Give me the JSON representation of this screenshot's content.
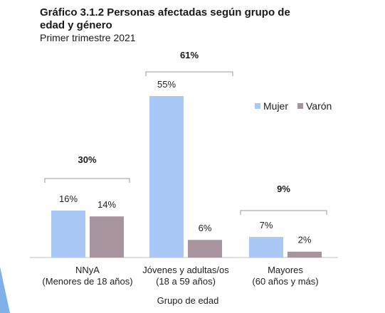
{
  "title_line1": "Gráfico 3.1.2  Personas afectadas según grupo de",
  "title_line2": "edad y género",
  "subtitle": "Primer trimestre 2021",
  "colors": {
    "mujer": "#a9c8f6",
    "varon": "#a7949f",
    "bracket": "#999999",
    "accent_shape": "#7fb0e8"
  },
  "chart_data": {
    "type": "bar",
    "categories": [
      [
        "NNyA",
        "(Menores de 18 años)"
      ],
      [
        "Jóvenes y adultas/os",
        "(18 a 59 años)"
      ],
      [
        "Mayores",
        "(60 años y más)"
      ]
    ],
    "series": [
      {
        "name": "Mujer",
        "values": [
          16,
          55,
          7
        ],
        "labels": [
          "16%",
          "55%",
          "7%"
        ]
      },
      {
        "name": "Varón",
        "values": [
          14,
          6,
          2
        ],
        "labels": [
          "14%",
          "6%",
          "2%"
        ]
      }
    ],
    "group_totals": [
      "30%",
      "61%",
      "9%"
    ],
    "xlabel": "Grupo de edad",
    "ylabel": "",
    "ylim": [
      0,
      60
    ],
    "legend_position": "right",
    "grid": false
  }
}
